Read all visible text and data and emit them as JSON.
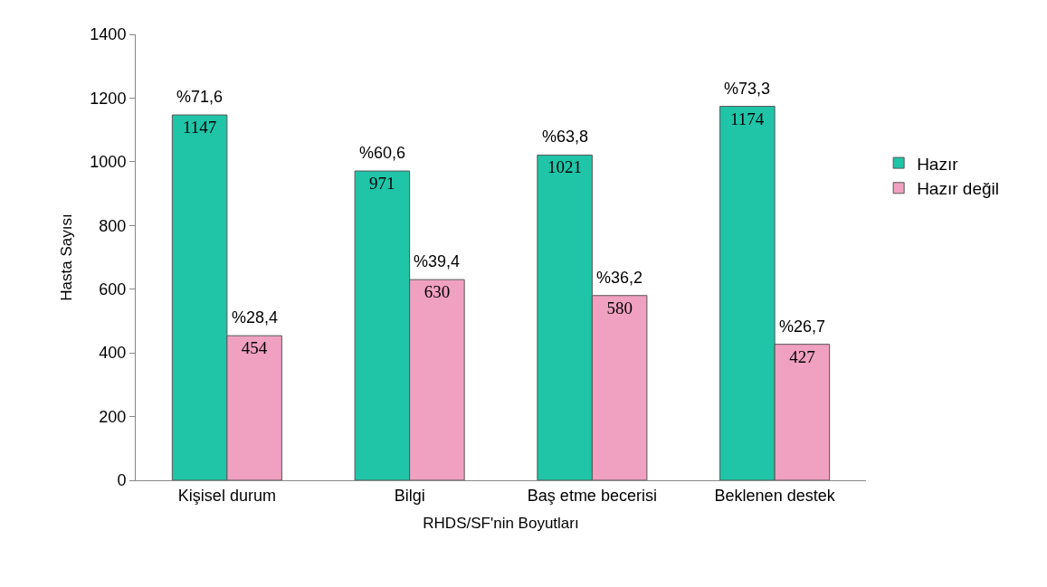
{
  "chart_data": {
    "type": "bar",
    "xlabel": "RHDS/SF'nin Boyutları",
    "ylabel": "Hasta Sayısı",
    "categories": [
      "Kişisel durum",
      "Bilgi",
      "Baş etme becerisi",
      "Beklenen destek"
    ],
    "series": [
      {
        "name": "Hazır",
        "color": "#20c5a8",
        "values": [
          1147,
          971,
          1021,
          1174
        ]
      },
      {
        "name": "Hazır değil",
        "color": "#f0a0c0",
        "values": [
          454,
          630,
          580,
          427
        ]
      }
    ],
    "annotations": [
      {
        "text": "%71,6",
        "x": "Kişisel durum",
        "y": 1147
      },
      {
        "text": "%60,6",
        "x": "Bilgi",
        "y": 971
      },
      {
        "text": "%63,8",
        "x": "Baş etme becerisi",
        "y": 1021
      },
      {
        "text": "%73,3",
        "x": "Beklenen destek",
        "y": 1174
      },
      {
        "text": "%28,4",
        "x": "Kişisel durum",
        "y": 454
      },
      {
        "text": "%39,4",
        "x": "Bilgi",
        "y": 630
      },
      {
        "text": "%36,2",
        "x": "Baş etme becerisi",
        "y": 580
      },
      {
        "text": "%26,7",
        "x": "Beklenen destek",
        "y": 427
      }
    ],
    "ylim": [
      0,
      1400
    ],
    "yticks": [
      0,
      200,
      400,
      600,
      800,
      1000,
      1200,
      1400
    ],
    "legend": "right",
    "data_labels": true
  }
}
